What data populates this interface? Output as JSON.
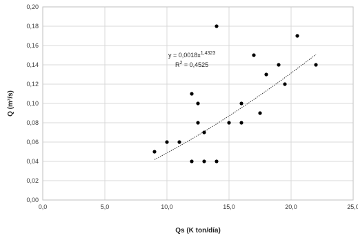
{
  "chart_data": {
    "type": "scatter",
    "xlabel": "Qs (K ton/día)",
    "ylabel": "Q (m³/s)",
    "xlim": [
      0,
      25
    ],
    "ylim": [
      0,
      0.2
    ],
    "x_ticks": [
      "0,0",
      "5,0",
      "10,0",
      "15,0",
      "20,0",
      "25,0"
    ],
    "y_ticks": [
      "0,00",
      "0,02",
      "0,04",
      "0,06",
      "0,08",
      "0,10",
      "0,12",
      "0,14",
      "0,16",
      "0,18",
      "0,20"
    ],
    "grid": true,
    "points": [
      {
        "x": 9.0,
        "y": 0.05
      },
      {
        "x": 10.0,
        "y": 0.06
      },
      {
        "x": 11.0,
        "y": 0.06
      },
      {
        "x": 12.0,
        "y": 0.11
      },
      {
        "x": 12.0,
        "y": 0.04
      },
      {
        "x": 12.5,
        "y": 0.1
      },
      {
        "x": 12.5,
        "y": 0.08
      },
      {
        "x": 13.0,
        "y": 0.07
      },
      {
        "x": 13.0,
        "y": 0.04
      },
      {
        "x": 14.0,
        "y": 0.18
      },
      {
        "x": 14.0,
        "y": 0.04
      },
      {
        "x": 15.0,
        "y": 0.08
      },
      {
        "x": 16.0,
        "y": 0.1
      },
      {
        "x": 16.0,
        "y": 0.08
      },
      {
        "x": 17.0,
        "y": 0.15
      },
      {
        "x": 17.5,
        "y": 0.09
      },
      {
        "x": 18.0,
        "y": 0.13
      },
      {
        "x": 19.0,
        "y": 0.14
      },
      {
        "x": 19.5,
        "y": 0.12
      },
      {
        "x": 20.5,
        "y": 0.17
      },
      {
        "x": 22.0,
        "y": 0.14
      }
    ],
    "trendline": {
      "kind": "power",
      "coefficient": 0.0018,
      "exponent": 1.4323,
      "x_range": [
        9,
        22
      ],
      "equation_prefix": "y = 0,0018x",
      "equation_exponent": "1,4323",
      "r2_prefix": "R",
      "r2_sup": "2",
      "r2_value": " = 0,4525"
    },
    "colors": {
      "points": "#000000",
      "trendline": "#404040",
      "grid": "#d9d9d9"
    }
  }
}
